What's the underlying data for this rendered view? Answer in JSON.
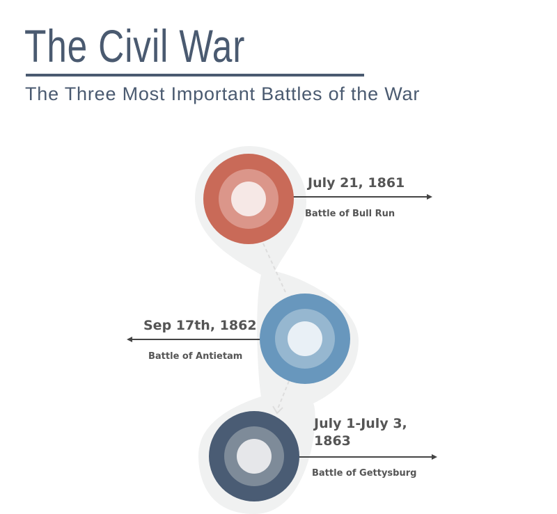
{
  "header": {
    "title": "The Civil War",
    "subtitle": "The Three Most Important Battles of the War"
  },
  "timeline": [
    {
      "date": "July 21, 1861",
      "battle": "Battle of Bull Run",
      "color": "#c96a58",
      "mid_color": "#db968a",
      "inner_color": "#f6e8e6"
    },
    {
      "date": "Sep 17th, 1862",
      "battle": "Battle of Antietam",
      "color": "#6897bd",
      "mid_color": "#96b7d0",
      "inner_color": "#e9f0f6"
    },
    {
      "date": "July 1-July 3, 1863",
      "battle": "Battle of Gettysburg",
      "color": "#4a5c74",
      "mid_color": "#7e8b99",
      "inner_color": "#e6e7ea"
    }
  ],
  "colors": {
    "text": "#4a5a70",
    "label": "#555555",
    "path_bg": "#f0f1f1"
  }
}
